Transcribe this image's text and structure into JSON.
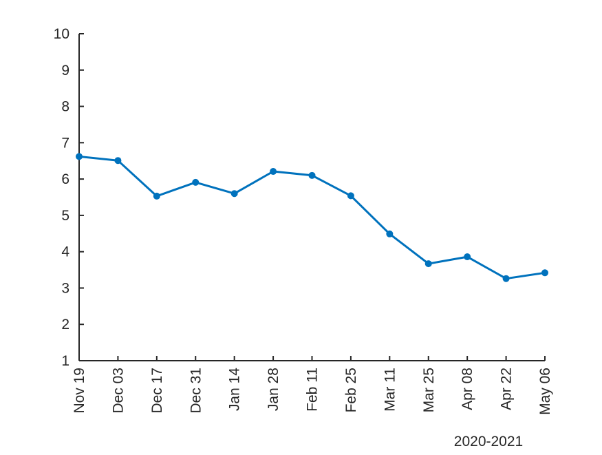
{
  "chart_data": {
    "type": "line",
    "title": "",
    "xlabel": "",
    "ylabel": "",
    "x_secondary_label": "2020-2021",
    "x": [
      "Nov 19",
      "Dec 03",
      "Dec 17",
      "Dec 31",
      "Jan 14",
      "Jan 28",
      "Feb 11",
      "Feb 25",
      "Mar 11",
      "Mar 25",
      "Apr 08",
      "Apr 22",
      "May 06"
    ],
    "series": [
      {
        "values": [
          6.62,
          6.51,
          5.53,
          5.91,
          5.6,
          6.21,
          6.1,
          5.54,
          4.49,
          3.67,
          3.86,
          3.26,
          3.42
        ],
        "color": "#0072BD"
      }
    ],
    "ylim": [
      1,
      10
    ],
    "yticks": [
      "1",
      "2",
      "3",
      "4",
      "5",
      "6",
      "7",
      "8",
      "9",
      "10"
    ],
    "grid": false,
    "legend": "none"
  }
}
